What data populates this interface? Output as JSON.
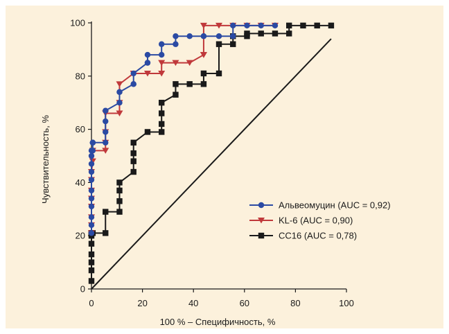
{
  "chart_data": {
    "type": "line",
    "title": "",
    "xlabel": "100 % – Специфичность, %",
    "ylabel": "Чувствительность, %",
    "xlim": [
      0,
      100
    ],
    "ylim": [
      0,
      100
    ],
    "x_ticks": [
      "0",
      "20",
      "40",
      "60",
      "80",
      "100"
    ],
    "y_ticks": [
      "0",
      "20",
      "40",
      "60",
      "80",
      "100"
    ],
    "grid": false,
    "legend_position": "right",
    "series": [
      {
        "name": "Альвеомуцин (AUC = 0,92)",
        "color": "#2b4aa3",
        "marker": "circle",
        "x": [
          0,
          0,
          0,
          0,
          0,
          0,
          0,
          0,
          0,
          0,
          0,
          0.5,
          0.5,
          0.5,
          0.5,
          0.5,
          5.5,
          5.5,
          5.5,
          5.5,
          11,
          11,
          11,
          16.5,
          16.5,
          16.5,
          22,
          22,
          22,
          27.5,
          27.5,
          33,
          33,
          38.5,
          44,
          44,
          50,
          55.5,
          55.5,
          61,
          66.5,
          72
        ],
        "y": [
          21,
          24,
          27,
          31,
          34,
          37,
          41,
          44,
          47,
          50,
          52,
          52,
          55,
          55,
          55,
          55,
          55,
          59,
          63,
          67,
          70,
          74,
          74,
          77,
          77,
          81,
          85,
          85,
          88,
          88,
          92,
          92,
          95,
          95,
          95,
          95,
          95,
          95,
          99,
          99,
          99,
          99
        ]
      },
      {
        "name": "KL-6 (AUC = 0,90)",
        "color": "#c0393b",
        "marker": "triangle-down",
        "x": [
          0,
          0,
          0,
          0,
          0,
          0,
          0,
          0,
          0.5,
          0.5,
          5.5,
          5.5,
          5.5,
          5.5,
          11,
          11,
          11,
          16.5,
          16.5,
          22,
          27.5,
          27.5,
          33,
          38.5,
          44,
          44,
          44,
          50,
          55.5,
          61,
          66.5,
          72
        ],
        "y": [
          21,
          24,
          27,
          31,
          34,
          37,
          41,
          44,
          48,
          52,
          52,
          55,
          59,
          66,
          66,
          70,
          77,
          81,
          81,
          81,
          81,
          85,
          85,
          85,
          88,
          88,
          99,
          99,
          99,
          99,
          99,
          99
        ]
      },
      {
        "name": "CC16 (AUC = 0,78)",
        "color": "#1a1a1a",
        "marker": "square",
        "x": [
          0,
          0,
          0,
          0,
          0,
          0,
          0,
          0,
          0,
          0.5,
          5.5,
          5.5,
          11,
          11,
          11,
          11,
          16.5,
          16.5,
          16.5,
          16.5,
          22,
          27.5,
          27.5,
          27.5,
          27.5,
          33,
          33,
          38.5,
          44,
          44,
          50,
          50,
          55.5,
          55.5,
          61,
          61,
          66.5,
          72,
          77.5,
          77.5,
          83,
          88.5,
          94
        ],
        "y": [
          3,
          7,
          10,
          13,
          17,
          20,
          21,
          21,
          21,
          21,
          21,
          29,
          29,
          33,
          37,
          40,
          44,
          48,
          51,
          55,
          59,
          59,
          62,
          66,
          70,
          73,
          77,
          77,
          77,
          81,
          81,
          92,
          92,
          95,
          95,
          96,
          96,
          96,
          96,
          99,
          99,
          99,
          99
        ]
      }
    ],
    "reference_line": {
      "x": [
        0,
        94
      ],
      "y": [
        0,
        94
      ],
      "color": "#1a1a1a"
    }
  }
}
